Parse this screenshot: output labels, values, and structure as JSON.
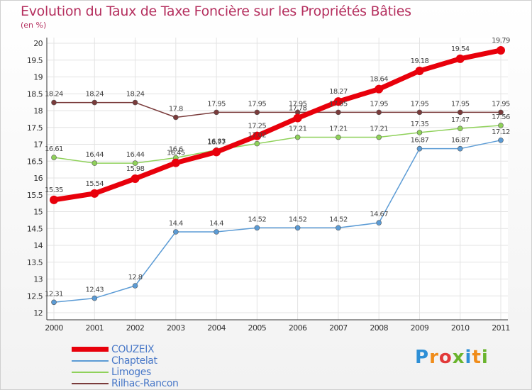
{
  "chart_data": {
    "type": "line",
    "title": "Evolution du Taux de Taxe Foncière sur les Propriétés Bâties",
    "subtitle": "(en %)",
    "x": [
      "2000",
      "2001",
      "2002",
      "2003",
      "2004",
      "2005",
      "2006",
      "2007",
      "2008",
      "2009",
      "2010",
      "2011"
    ],
    "ylim": [
      12,
      20
    ],
    "yticks": [
      "12",
      "12.5",
      "13",
      "13.5",
      "14",
      "14.5",
      "15",
      "15.5",
      "16",
      "16.5",
      "17",
      "17.5",
      "18",
      "18.5",
      "19",
      "19.5",
      "20"
    ],
    "grid": true,
    "legend_position": "bottom-left",
    "series": [
      {
        "name": "Rilhac-Rancon",
        "color": "#7a3b3b",
        "values": [
          18.24,
          18.24,
          18.24,
          17.8,
          17.95,
          17.95,
          17.95,
          17.95,
          17.95,
          17.95,
          17.95,
          17.95
        ],
        "labels": [
          "18.24",
          "18.24",
          "18.24",
          "17.8",
          "17.95",
          "17.95",
          "17.95",
          "17.95",
          "17.95",
          "17.95",
          "17.95",
          "17.95"
        ]
      },
      {
        "name": "Limoges",
        "color": "#8fd15a",
        "values": [
          16.61,
          16.44,
          16.44,
          16.6,
          16.83,
          17.02,
          17.21,
          17.21,
          17.21,
          17.35,
          17.47,
          17.56
        ],
        "labels": [
          "16.61",
          "16.44",
          "16.44",
          "16.6",
          "16.83",
          "17.02",
          "17.21",
          "17.21",
          "17.21",
          "17.35",
          "17.47",
          "17.56"
        ]
      },
      {
        "name": "Chaptelat",
        "color": "#5b9bd5",
        "values": [
          12.31,
          12.43,
          12.8,
          14.4,
          14.4,
          14.52,
          14.52,
          14.52,
          14.67,
          16.87,
          16.87,
          17.12
        ],
        "labels": [
          "12.31",
          "12.43",
          "12.8",
          "14.4",
          "14.4",
          "14.52",
          "14.52",
          "14.52",
          "14.67",
          "16.87",
          "16.87",
          "17.12"
        ]
      },
      {
        "name": "COUZEIX",
        "color": "#e8000b",
        "values": [
          15.35,
          15.54,
          15.98,
          16.45,
          16.77,
          17.25,
          17.78,
          18.27,
          18.64,
          19.18,
          19.54,
          19.79
        ],
        "labels": [
          "15.35",
          "15.54",
          "15.98",
          "16.45",
          "16.77",
          "17.25",
          "17.78",
          "18.27",
          "18.64",
          "19.18",
          "19.54",
          "19.79"
        ]
      }
    ]
  },
  "legend": {
    "items": [
      {
        "label": "COUZEIX",
        "color": "#e8000b"
      },
      {
        "label": "Chaptelat",
        "color": "#5b9bd5"
      },
      {
        "label": "Limoges",
        "color": "#8fd15a"
      },
      {
        "label": "Rilhac-Rancon",
        "color": "#7a3b3b"
      }
    ]
  },
  "logo": {
    "letters": [
      "P",
      "r",
      "o",
      "x",
      "i",
      "t",
      "i"
    ],
    "colors": [
      "#2e8fd6",
      "#f08c1a",
      "#e23a3a",
      "#6ab42d",
      "#2e8fd6",
      "#f08c1a",
      "#6ab42d"
    ]
  }
}
